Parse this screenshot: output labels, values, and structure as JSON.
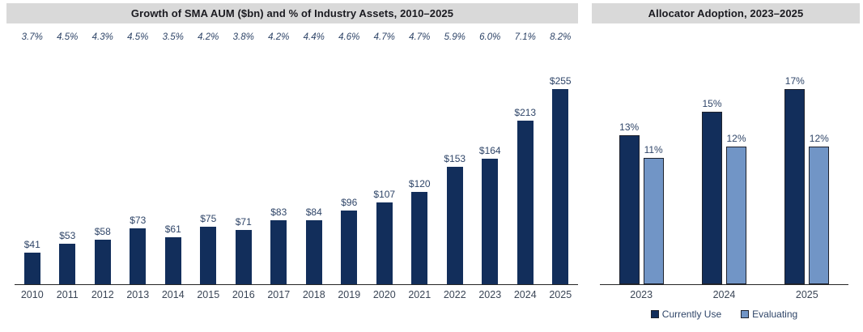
{
  "colors": {
    "bar_navy": "#122E5B",
    "bar_light_blue": "#7195C6",
    "bar_outline": "#1E222D",
    "title_bar_bg": "#D9D9D9",
    "title_text": "#1A1A20",
    "value_label_text": "#2F4568",
    "axis_label_text": "#3A4556",
    "axis_line": "#262626"
  },
  "chart_data": [
    {
      "type": "bar",
      "title": "Growth of SMA AUM ($bn) and % of Industry Assets, 2010–2025",
      "categories": [
        "2010",
        "2011",
        "2012",
        "2013",
        "2014",
        "2015",
        "2016",
        "2017",
        "2018",
        "2019",
        "2020",
        "2021",
        "2022",
        "2023",
        "2024",
        "2025"
      ],
      "series": [
        {
          "name": "SMA AUM ($bn)",
          "values": [
            41,
            53,
            58,
            73,
            61,
            75,
            71,
            83,
            84,
            96,
            107,
            120,
            153,
            164,
            213,
            255
          ],
          "labels": [
            "$41",
            "$53",
            "$58",
            "$73",
            "$61",
            "$75",
            "$71",
            "$83",
            "$84",
            "$96",
            "$107",
            "$120",
            "$153",
            "$164",
            "$213",
            "$255"
          ],
          "color": "#122E5B"
        },
        {
          "name": "% of Industry Assets",
          "values": [
            3.7,
            4.5,
            4.3,
            4.5,
            3.5,
            4.2,
            3.8,
            4.2,
            4.4,
            4.6,
            4.7,
            4.7,
            5.9,
            6.0,
            7.1,
            8.2
          ],
          "labels": [
            "3.7%",
            "4.5%",
            "4.3%",
            "4.5%",
            "3.5%",
            "4.2%",
            "3.8%",
            "4.2%",
            "4.4%",
            "4.6%",
            "4.7%",
            "4.7%",
            "5.9%",
            "6.0%",
            "7.1%",
            "8.2%"
          ],
          "display": "italic-top-row"
        }
      ],
      "ylim": [
        0,
        315
      ],
      "grid": false,
      "legend": "none"
    },
    {
      "type": "bar",
      "title": "Allocator Adoption, 2023–2025",
      "categories": [
        "2023",
        "2024",
        "2025"
      ],
      "series": [
        {
          "name": "Currently Use",
          "values": [
            13,
            15,
            17
          ],
          "labels": [
            "13%",
            "15%",
            "17%"
          ],
          "color": "#122E5B"
        },
        {
          "name": "Evaluating",
          "values": [
            11,
            12,
            12
          ],
          "labels": [
            "11%",
            "12%",
            "12%"
          ],
          "color": "#7195C6"
        }
      ],
      "ylim": [
        0,
        21
      ],
      "grid": false,
      "legend": "bottom"
    }
  ]
}
